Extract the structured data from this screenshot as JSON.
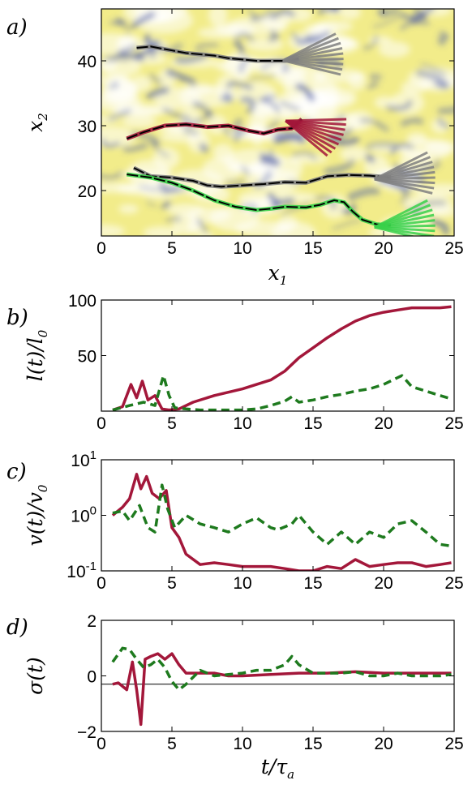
{
  "colors": {
    "red": "#a3173a",
    "green": "#1e7a1e",
    "bright_green": "#39d14a",
    "gray": "#808080",
    "map_yellow": "#f2ec8a",
    "map_blue": "#4a5aa6"
  },
  "chart_data": [
    {
      "type": "line",
      "panel_label": "a)",
      "xlabel": "x_1",
      "ylabel": "x_2",
      "xlim": [
        0,
        25
      ],
      "ylim": [
        13,
        48
      ],
      "xticks": [
        "0",
        "5",
        "10",
        "15",
        "20",
        "25"
      ],
      "yticks": [
        "20",
        "30",
        "40"
      ],
      "background": "colormap field (yellow = high, blue = low)",
      "series": [
        {
          "color": "gray",
          "x": [
            2.5,
            3.5,
            5,
            6,
            7,
            8,
            9,
            10,
            11,
            12,
            13,
            14
          ],
          "y": [
            42,
            42.2,
            41.6,
            41.2,
            41,
            40.8,
            40.4,
            40.2,
            40.0,
            40.0,
            40.0,
            40.3
          ]
        },
        {
          "color": "red",
          "x": [
            1.8,
            3,
            4.5,
            6,
            7.5,
            9,
            10.5,
            11.5,
            12.5,
            13.5,
            14.2
          ],
          "y": [
            28,
            29,
            30,
            30.2,
            29.8,
            30,
            29.2,
            28.8,
            29.4,
            29.6,
            31
          ]
        },
        {
          "color": "gray",
          "x": [
            2.3,
            3.5,
            5,
            6.5,
            7.5,
            8.5,
            10,
            11.5,
            13,
            14.5,
            16,
            17.5,
            19,
            20.5
          ],
          "y": [
            23.5,
            22.2,
            22,
            21.5,
            20.8,
            20.6,
            20.8,
            21.0,
            21.3,
            21.2,
            22.2,
            22.4,
            22.3,
            22
          ]
        },
        {
          "color": "bright_green",
          "x": [
            1.8,
            3.5,
            5,
            6.5,
            8,
            9.5,
            11,
            12,
            13,
            14.5,
            15.5,
            16.5,
            17.2,
            17.8,
            18.5,
            19.5,
            20.5
          ],
          "y": [
            22.5,
            22.0,
            21.2,
            20.0,
            18.5,
            17.5,
            17.0,
            17.2,
            17.5,
            17.4,
            17.8,
            18.5,
            18.2,
            16.8,
            15.5,
            14.8,
            14.6
          ]
        }
      ]
    },
    {
      "type": "line",
      "panel_label": "b)",
      "ylabel": "l(t)/l_0",
      "xlim": [
        0,
        25
      ],
      "ylim": [
        0,
        100
      ],
      "xticks": [
        "0",
        "5",
        "10",
        "15",
        "20",
        "25"
      ],
      "yticks": [
        "50",
        "100"
      ],
      "series": [
        {
          "color": "red",
          "style": "solid",
          "x": [
            0.8,
            1.5,
            2.1,
            2.5,
            2.9,
            3.3,
            3.8,
            4.3,
            4.8,
            5.5,
            6.5,
            8,
            10,
            12,
            13,
            14,
            15,
            16,
            17,
            18,
            19,
            20,
            21,
            22,
            23,
            24,
            24.8
          ],
          "y": [
            1,
            4,
            24,
            12,
            27,
            10,
            14,
            2,
            1,
            2,
            8,
            14,
            20,
            28,
            36,
            48,
            57,
            66,
            74,
            81,
            86,
            89,
            91,
            93,
            93,
            93,
            94
          ]
        },
        {
          "color": "green",
          "style": "dashed",
          "x": [
            0.8,
            2,
            3,
            3.8,
            4.4,
            4.8,
            5.2,
            6,
            7,
            8,
            9,
            10,
            11,
            12,
            13,
            13.5,
            14,
            15,
            16,
            17,
            18,
            19,
            20,
            20.8,
            21.3,
            22,
            23,
            24,
            24.8
          ],
          "y": [
            1,
            5,
            8,
            5,
            32,
            14,
            3,
            2,
            1,
            1,
            1,
            1,
            2,
            5,
            9,
            13,
            8,
            10,
            13,
            15,
            18,
            20,
            24,
            29,
            32,
            22,
            18,
            14,
            11
          ]
        }
      ]
    },
    {
      "type": "line",
      "panel_label": "c)",
      "ylabel": "v(t)/v_0",
      "xlim": [
        0,
        25
      ],
      "ylim": [
        0.1,
        10
      ],
      "yscale": "log",
      "xticks": [
        "0",
        "5",
        "10",
        "15",
        "20",
        "25"
      ],
      "yticks": [
        "10^1",
        "10^0",
        "10^-1"
      ],
      "series": [
        {
          "color": "red",
          "style": "solid",
          "x": [
            0.8,
            1.5,
            2,
            2.5,
            2.8,
            3.2,
            3.6,
            4.1,
            4.6,
            5,
            5.5,
            6,
            7,
            8,
            9,
            10,
            11,
            12,
            13,
            14,
            15,
            16,
            17,
            18,
            19,
            20,
            21,
            22,
            23,
            24,
            24.8
          ],
          "y": [
            1.0,
            1.4,
            2.0,
            5.5,
            3.0,
            5.0,
            2.5,
            2.0,
            2.8,
            0.6,
            0.4,
            0.2,
            0.13,
            0.14,
            0.13,
            0.12,
            0.12,
            0.12,
            0.11,
            0.1,
            0.1,
            0.12,
            0.11,
            0.16,
            0.12,
            0.13,
            0.14,
            0.14,
            0.12,
            0.13,
            0.14
          ]
        },
        {
          "color": "green",
          "style": "dashed",
          "x": [
            0.8,
            1.5,
            2,
            2.7,
            3.3,
            3.8,
            4.3,
            4.7,
            5.2,
            6,
            7,
            8,
            9,
            10,
            11,
            12,
            12.5,
            13.5,
            14,
            15,
            16,
            17,
            18,
            19,
            20,
            21,
            22,
            23,
            24,
            24.8
          ],
          "y": [
            1.1,
            1.2,
            0.8,
            1.5,
            0.6,
            0.5,
            3.5,
            1.3,
            0.6,
            1.0,
            0.7,
            0.6,
            0.5,
            0.7,
            0.9,
            0.6,
            0.55,
            0.7,
            1.0,
            0.5,
            0.3,
            0.5,
            0.3,
            0.5,
            0.4,
            0.7,
            0.8,
            0.5,
            0.3,
            0.28
          ]
        }
      ]
    },
    {
      "type": "line",
      "panel_label": "d)",
      "ylabel": "σ(t)",
      "xlabel": "t/τ_a",
      "xlim": [
        0,
        25
      ],
      "ylim": [
        -2,
        2
      ],
      "xticks": [
        "0",
        "5",
        "10",
        "15",
        "20",
        "25"
      ],
      "yticks": [
        "2",
        "0",
        "−2"
      ],
      "reference_line_y": -0.3,
      "series": [
        {
          "color": "red",
          "style": "solid",
          "x": [
            0.8,
            1.2,
            1.8,
            2.2,
            2.5,
            2.8,
            3.1,
            3.5,
            4,
            4.5,
            5,
            5.5,
            6,
            7,
            8,
            9,
            10,
            12,
            14,
            16,
            18,
            20,
            22,
            24,
            24.8
          ],
          "y": [
            -0.3,
            -0.25,
            -0.5,
            0.5,
            -0.5,
            -1.75,
            0.6,
            0.7,
            0.8,
            0.6,
            0.8,
            0.4,
            0.1,
            0.1,
            0.1,
            0.0,
            0.0,
            0.05,
            0.1,
            0.1,
            0.15,
            0.1,
            0.1,
            0.1,
            0.1
          ]
        },
        {
          "color": "green",
          "style": "dashed",
          "x": [
            0.8,
            1.5,
            2,
            2.5,
            3,
            3.5,
            4,
            4.5,
            5,
            5.5,
            6,
            7,
            8,
            9,
            10,
            11,
            12,
            13,
            13.5,
            14,
            15,
            16,
            17,
            18,
            19,
            20,
            21,
            22,
            23,
            24,
            24.8
          ],
          "y": [
            0.5,
            1.0,
            0.95,
            0.6,
            0.3,
            0.4,
            0.6,
            0.3,
            -0.2,
            -0.5,
            -0.3,
            0.2,
            0.0,
            0.05,
            0.1,
            0.2,
            0.2,
            0.4,
            0.7,
            0.4,
            0.1,
            0.1,
            0.1,
            0.15,
            0.0,
            0.0,
            0.1,
            0.0,
            0.0,
            0.0,
            0.05
          ]
        }
      ]
    }
  ]
}
